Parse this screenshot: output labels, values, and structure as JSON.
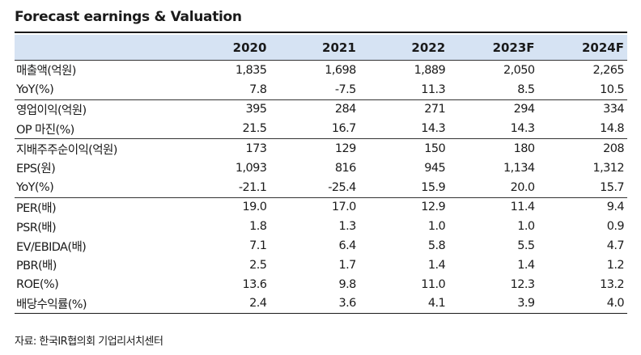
{
  "title": "Forecast earnings & Valuation",
  "columns": [
    "2020",
    "2021",
    "2022",
    "2023F",
    "2024F"
  ],
  "rows": [
    {
      "label": "매출액(억원)",
      "values": [
        "1,835",
        "1,698",
        "1,889",
        "2,050",
        "2,265"
      ],
      "group_start": true
    },
    {
      "label": "YoY(%)",
      "values": [
        "7.8",
        "-7.5",
        "11.3",
        "8.5",
        "10.5"
      ],
      "group_start": false
    },
    {
      "label": "영업이익(억원)",
      "values": [
        "395",
        "284",
        "271",
        "294",
        "334"
      ],
      "group_start": true
    },
    {
      "label": "OP 마진(%)",
      "values": [
        "21.5",
        "16.7",
        "14.3",
        "14.3",
        "14.8"
      ],
      "group_start": false
    },
    {
      "label": "지배주주순이익(억원)",
      "values": [
        "173",
        "129",
        "150",
        "180",
        "208"
      ],
      "group_start": true
    },
    {
      "label": "EPS(원)",
      "values": [
        "1,093",
        "816",
        "945",
        "1,134",
        "1,312"
      ],
      "group_start": false
    },
    {
      "label": "YoY(%)",
      "values": [
        "-21.1",
        "-25.4",
        "15.9",
        "20.0",
        "15.7"
      ],
      "group_start": false
    },
    {
      "label": "PER(배)",
      "values": [
        "19.0",
        "17.0",
        "12.9",
        "11.4",
        "9.4"
      ],
      "group_start": true
    },
    {
      "label": "PSR(배)",
      "values": [
        "1.8",
        "1.3",
        "1.0",
        "1.0",
        "0.9"
      ],
      "group_start": false
    },
    {
      "label": "EV/EBIDA(배)",
      "values": [
        "7.1",
        "6.4",
        "5.8",
        "5.5",
        "4.7"
      ],
      "group_start": false
    },
    {
      "label": "PBR(배)",
      "values": [
        "2.5",
        "1.7",
        "1.4",
        "1.4",
        "1.2"
      ],
      "group_start": false
    },
    {
      "label": "ROE(%)",
      "values": [
        "13.6",
        "9.8",
        "11.0",
        "12.3",
        "13.2"
      ],
      "group_start": false
    },
    {
      "label": "배당수익률(%)",
      "values": [
        "2.4",
        "3.6",
        "4.1",
        "3.9",
        "4.0"
      ],
      "group_start": false
    }
  ],
  "source": "자료: 한국IR협의회 기업리서치센터",
  "colors": {
    "header_bg": "#d6e3f3",
    "rule": "#1a1a1a"
  }
}
